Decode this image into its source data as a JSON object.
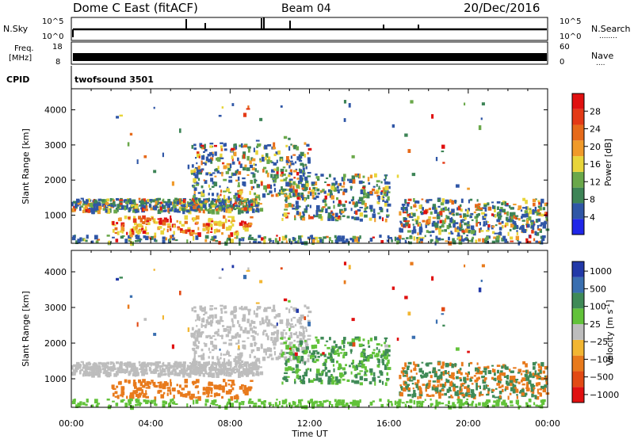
{
  "header": {
    "station": "Dome C East (fitACF)",
    "beam": "Beam 04",
    "date": "20/Dec/2016"
  },
  "panels": {
    "nsky": {
      "left_label": "N.Sky",
      "right_label": "N.Search",
      "right_sub": "........",
      "tick_top": "10^5",
      "tick_bottom": "10^0"
    },
    "freq": {
      "left_label_1": "Freq.",
      "left_label_2": "[MHz]",
      "tick_top": "18",
      "tick_bottom": "8",
      "right_tick_top": "60",
      "right_tick_bottom": "0",
      "right_label": "Nave",
      "right_sub": "...."
    },
    "cpid": {
      "left_label": "CPID",
      "value": "twofsound 3501"
    }
  },
  "colors": {
    "power": [
      "#1f26e8",
      "#2f56a6",
      "#3d8456",
      "#6aa84a",
      "#e8d53a",
      "#f09a2a",
      "#e66a1a",
      "#e43a16",
      "#e01010"
    ],
    "velocity": [
      "#2239a8",
      "#3a6fb0",
      "#3f8a57",
      "#62c23a",
      "#bdbdbd",
      "#f2b632",
      "#e87a1c",
      "#e24a14",
      "#e01010"
    ]
  },
  "chart_data": [
    {
      "type": "heatmap",
      "xlabel": "",
      "ylabel": "Slant Range [km]",
      "x_ticks": [
        "00:00",
        "04:00",
        "08:00",
        "12:00",
        "16:00",
        "20:00",
        "00:00"
      ],
      "y_ticks": [
        1000,
        2000,
        3000,
        4000
      ],
      "ylim": [
        200,
        4600
      ],
      "colorbar": {
        "label": "Power [dB]",
        "ticks": [
          4,
          8,
          12,
          16,
          20,
          24,
          28
        ],
        "range": [
          0,
          32
        ]
      }
    },
    {
      "type": "heatmap",
      "xlabel": "Time UT",
      "ylabel": "Slant Range [km]",
      "x_ticks": [
        "00:00",
        "04:00",
        "08:00",
        "12:00",
        "16:00",
        "20:00",
        "00:00"
      ],
      "y_ticks": [
        1000,
        2000,
        3000,
        4000
      ],
      "ylim": [
        200,
        4600
      ],
      "colorbar": {
        "label": "Velocity [m s",
        "label_sup": "-1",
        "label_end": "]",
        "ticks": [
          "1000",
          "500",
          "100",
          "25",
          "−25",
          "−100",
          "−500",
          "−1000"
        ]
      }
    }
  ]
}
